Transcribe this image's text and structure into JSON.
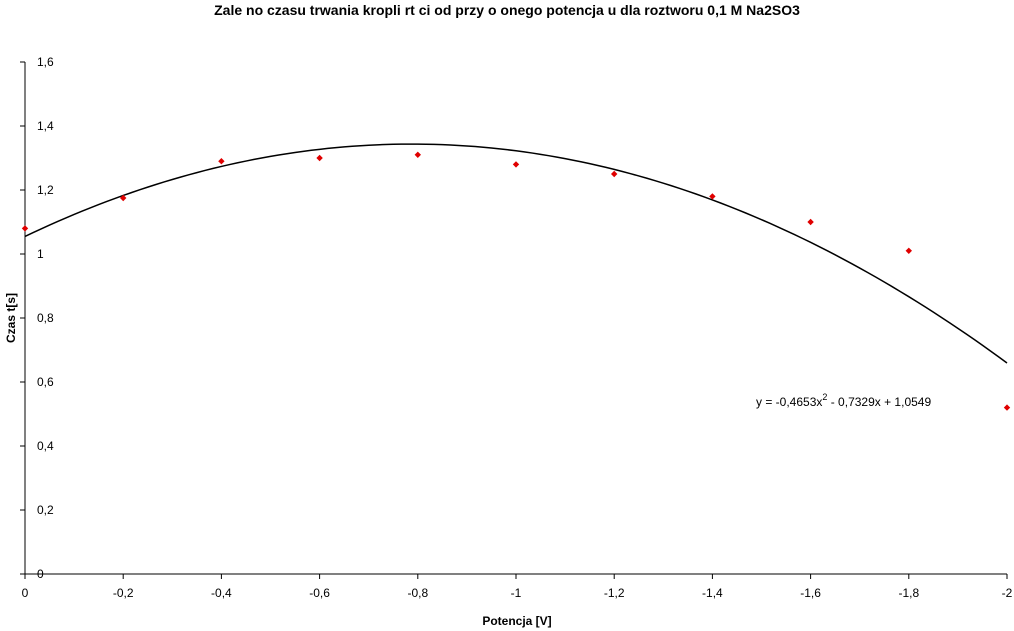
{
  "chart_data": {
    "type": "scatter",
    "title": "Zale no     czasu trwania kropli rt  ci od przy o  onego potencja u dla roztworu 0,1 M Na2SO3",
    "xlabel": "Potencja  [V]",
    "ylabel": "Czas t[s]",
    "xlim": [
      0,
      -2
    ],
    "ylim": [
      0,
      1.6
    ],
    "x_ticks": [
      "0",
      "-0,2",
      "-0,4",
      "-0,6",
      "-0,8",
      "-1",
      "-1,2",
      "-1,4",
      "-1,6",
      "-1,8",
      "-2"
    ],
    "y_ticks": [
      "0",
      "0,2",
      "0,4",
      "0,6",
      "0,8",
      "1",
      "1,2",
      "1,4",
      "1,6"
    ],
    "series": [
      {
        "color": "#e00000",
        "points": [
          {
            "x": 0,
            "y": 1.08
          },
          {
            "x": -0.2,
            "y": 1.175
          },
          {
            "x": -0.4,
            "y": 1.29
          },
          {
            "x": -0.6,
            "y": 1.3
          },
          {
            "x": -0.8,
            "y": 1.31
          },
          {
            "x": -1.0,
            "y": 1.28
          },
          {
            "x": -1.2,
            "y": 1.25
          },
          {
            "x": -1.4,
            "y": 1.18
          },
          {
            "x": -1.6,
            "y": 1.1
          },
          {
            "x": -1.8,
            "y": 1.01
          },
          {
            "x": -2.0,
            "y": 0.52
          }
        ]
      }
    ],
    "trendline": {
      "type": "polynomial",
      "coefficients": [
        -0.4653,
        -0.7329,
        1.0549
      ],
      "color": "#000000",
      "label_prefix": "y = -0,4653x",
      "label_exponent": "2",
      "label_suffix": " - 0,7329x + 1,0549"
    },
    "grid": false,
    "legend": "none"
  }
}
